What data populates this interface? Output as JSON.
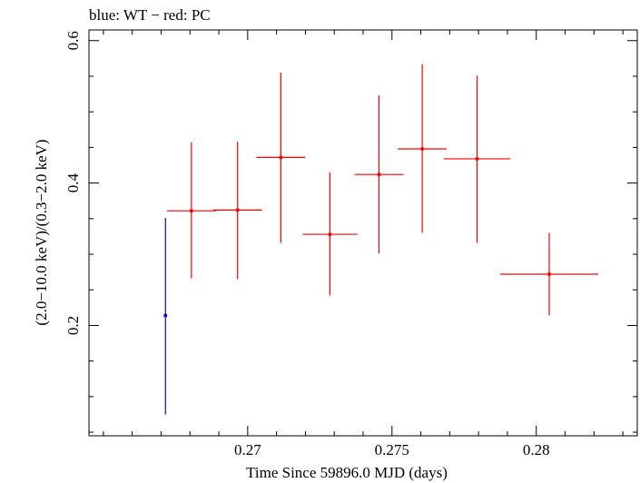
{
  "chart_data": {
    "type": "scatter",
    "title": "blue: WT − red: PC",
    "xlabel": "Time Since 59896.0 MJD (days)",
    "ylabel": "(2.0−10.0 keV)/(0.3−2.0 keV)",
    "xlim": [
      0.2645,
      0.2835
    ],
    "ylim": [
      0.045,
      0.615
    ],
    "x_ticks": [
      0.27,
      0.275,
      0.28
    ],
    "x_tick_labels": [
      "0.27",
      "0.275",
      "0.28"
    ],
    "y_ticks": [
      0.2,
      0.4,
      0.6
    ],
    "y_tick_labels": [
      "0.2",
      "0.4",
      "0.6"
    ],
    "grid": false,
    "series": [
      {
        "name": "WT",
        "color": "#0000ff",
        "points": [
          {
            "x": 0.26715,
            "xerr": 0.0,
            "y": 0.214,
            "ylo": 0.075,
            "yhi": 0.351
          }
        ]
      },
      {
        "name": "PC",
        "color": "#ff0000",
        "points": [
          {
            "x": 0.26805,
            "xerr": 0.00085,
            "y": 0.361,
            "ylo": 0.266,
            "yhi": 0.457
          },
          {
            "x": 0.26965,
            "xerr": 0.00085,
            "y": 0.362,
            "ylo": 0.265,
            "yhi": 0.458
          },
          {
            "x": 0.27115,
            "xerr": 0.00085,
            "y": 0.436,
            "ylo": 0.316,
            "yhi": 0.555
          },
          {
            "x": 0.27285,
            "xerr": 0.00095,
            "y": 0.328,
            "ylo": 0.242,
            "yhi": 0.415
          },
          {
            "x": 0.27455,
            "xerr": 0.00085,
            "y": 0.412,
            "ylo": 0.301,
            "yhi": 0.523
          },
          {
            "x": 0.27605,
            "xerr": 0.00085,
            "y": 0.448,
            "ylo": 0.33,
            "yhi": 0.567
          },
          {
            "x": 0.27795,
            "xerr": 0.00115,
            "y": 0.434,
            "ylo": 0.316,
            "yhi": 0.551
          },
          {
            "x": 0.28045,
            "xerr": 0.0017,
            "y": 0.272,
            "ylo": 0.214,
            "yhi": 0.33
          }
        ]
      }
    ]
  }
}
